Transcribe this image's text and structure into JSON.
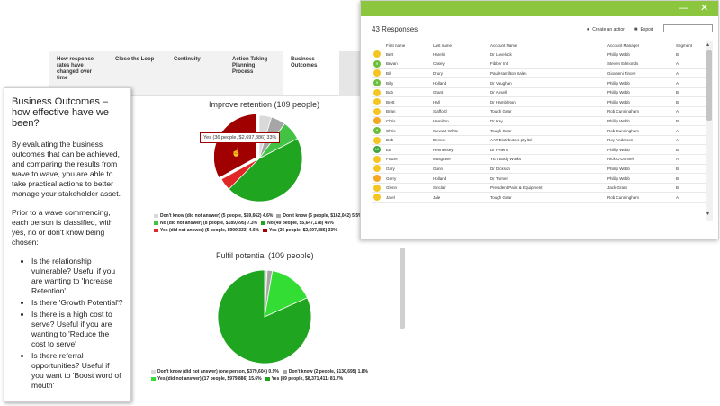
{
  "tabs": [
    {
      "label": "How response rates have changed over time"
    },
    {
      "label": "Close the Loop"
    },
    {
      "label": "Continuity"
    },
    {
      "label": "Action Taking Planning Process"
    },
    {
      "label": "Business Outcomes"
    }
  ],
  "charts": [
    {
      "title": "Improve retention (109 people)",
      "tooltip": "Yes (36 people, $2,697,886) 33%",
      "legend": [
        {
          "label": "Don't know (did not answer) (5 people, $59,662) 4.6%",
          "color": "#d9d9d9"
        },
        {
          "label": "Don't know (6 people, $162,042) 5.5%",
          "color": "#a6a6a6"
        },
        {
          "label": "No (did not answer) (8 people, $189,695) 7.3%",
          "color": "#44c244"
        },
        {
          "label": "No (49 people, $5,647,178) 45%",
          "color": "#1fa51f"
        },
        {
          "label": "Yes (did not answer) (5 people, $909,333) 4.6%",
          "color": "#e22727"
        },
        {
          "label": "Yes (36 people, $2,697,886) 33%",
          "color": "#a00000"
        }
      ]
    },
    {
      "title": "Fulfil potential (109 people)",
      "legend": [
        {
          "label": "Don't know (did not answer) (one person, $379,604) 0.9%",
          "color": "#d9d9d9"
        },
        {
          "label": "Don't know (2 people, $130,695) 1.8%",
          "color": "#a6a6a6"
        },
        {
          "label": "Yes (did not answer) (17 people, $979,886) 15.6%",
          "color": "#33dd33"
        },
        {
          "label": "Yes (89 people, $8,371,411) 81.7%",
          "color": "#1fa51f"
        }
      ]
    }
  ],
  "chart_data": [
    {
      "type": "pie",
      "title": "Improve retention (109 people)",
      "categories": [
        "Don't know (did not answer)",
        "Don't know",
        "No (did not answer)",
        "No",
        "Yes (did not answer)",
        "Yes"
      ],
      "values": [
        4.6,
        5.5,
        7.3,
        45,
        4.6,
        33
      ],
      "people": [
        5,
        6,
        8,
        49,
        5,
        36
      ],
      "amounts": [
        "$59,662",
        "$162,042",
        "$189,695",
        "$5,647,178",
        "$909,333",
        "$2,697,886"
      ]
    },
    {
      "type": "pie",
      "title": "Fulfil potential (109 people)",
      "categories": [
        "Don't know (did not answer)",
        "Don't know",
        "Yes (did not answer)",
        "Yes"
      ],
      "values": [
        0.9,
        1.8,
        15.6,
        81.7
      ],
      "people": [
        1,
        2,
        17,
        89
      ],
      "amounts": [
        "$379,604",
        "$130,695",
        "$979,886",
        "$8,371,411"
      ]
    }
  ],
  "info": {
    "title": "Business Outcomes – how effective have we been?",
    "p1": "By evaluating the business outcomes that can be achieved, and comparing the results from wave to wave, you are able to take practical actions to better manage your stakeholder asset.",
    "p2": "Prior to a wave commencing, each person is classified, with yes, no or don't know being chosen:",
    "bullets": [
      "Is the relationship vulnerable? Useful if you are wanting to 'Increase Retention'",
      "Is there 'Growth Potential'?",
      "Is there is a high cost to serve? Useful if you are wanting to 'Reduce the cost to serve'",
      "Is there referral opportunities? Useful if you want to 'Boost word of mouth'"
    ]
  },
  "responses": {
    "count_label": "43 Responses",
    "create_action": "Create an action",
    "export": "Export",
    "search_value": "",
    "columns": [
      "",
      "First name",
      "Last name",
      "Account Name",
      "Account Manager",
      "Segment"
    ],
    "rows": [
      {
        "score": "",
        "color": "#f5c623",
        "first": "Bert",
        "last": "Harelin",
        "account": "Dr Lovelock",
        "manager": "Phillip Webb",
        "segment": "B"
      },
      {
        "score": "9",
        "color": "#6cbf3a",
        "first": "Bevan",
        "last": "Casey",
        "account": "Fibber Intl",
        "manager": "Steven Edmonds",
        "segment": "A"
      },
      {
        "score": "",
        "color": "#f5c623",
        "first": "Bill",
        "last": "Drury",
        "account": "Paul Hamilton Sales",
        "manager": "Giovanni Tinore",
        "segment": "A"
      },
      {
        "score": "9",
        "color": "#6cbf3a",
        "first": "Billy",
        "last": "Holland",
        "account": "Dr Vaughan",
        "manager": "Phillip Webb",
        "segment": "A"
      },
      {
        "score": "",
        "color": "#f5c623",
        "first": "Bob",
        "last": "Grant",
        "account": "Dr Ansell",
        "manager": "Phillip Webb",
        "segment": "B"
      },
      {
        "score": "",
        "color": "#f5c623",
        "first": "Brett",
        "last": "Hall",
        "account": "Dr Hambleton",
        "manager": "Phillip Webb",
        "segment": "B"
      },
      {
        "score": "",
        "color": "#f5c623",
        "first": "Brian",
        "last": "Stafford",
        "account": "Tough Gear",
        "manager": "Rob Cunningham",
        "segment": "A"
      },
      {
        "score": "",
        "color": "#f5a623",
        "first": "Chris",
        "last": "Hamilton",
        "account": "Dr Kay",
        "manager": "Phillip Webb",
        "segment": "B"
      },
      {
        "score": "9",
        "color": "#6cbf3a",
        "first": "Chris",
        "last": "Stewart-White",
        "account": "Tough Gear",
        "manager": "Rob Cunningham",
        "segment": "A"
      },
      {
        "score": "",
        "color": "#f5c623",
        "first": "Deb",
        "last": "Bennet",
        "account": "AAT Distributors pty ltd",
        "manager": "Roy Anderson",
        "segment": "A"
      },
      {
        "score": "10",
        "color": "#3ea63a",
        "first": "Ed",
        "last": "Hennessey",
        "account": "Dr Peters",
        "manager": "Phillip Webb",
        "segment": "B"
      },
      {
        "score": "",
        "color": "#f5c623",
        "first": "Frazer",
        "last": "Musgrave",
        "account": "YET Body Works",
        "manager": "Rick O'Donnell",
        "segment": "A"
      },
      {
        "score": "",
        "color": "#f5c623",
        "first": "Gary",
        "last": "Gunn",
        "account": "Dr Dickson",
        "manager": "Phillip Webb",
        "segment": "B"
      },
      {
        "score": "",
        "color": "#f5a623",
        "first": "Gerry",
        "last": "Holland",
        "account": "Dr Turner",
        "manager": "Phillip Webb",
        "segment": "B"
      },
      {
        "score": "",
        "color": "#f5c623",
        "first": "Glenn",
        "last": "Sinclair",
        "account": "President Paint & Equipment",
        "manager": "Jack Grant",
        "segment": "B"
      },
      {
        "score": "",
        "color": "#f5c623",
        "first": "Jarel",
        "last": "Jale",
        "account": "Tough Gear",
        "manager": "Rob Cunningham",
        "segment": "A"
      }
    ]
  }
}
